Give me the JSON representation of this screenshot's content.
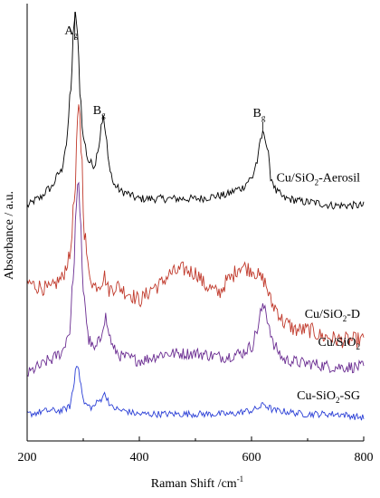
{
  "chart_data": {
    "type": "line",
    "xlabel": "Raman Shift /cm",
    "xlabel_sup": "-1",
    "ylabel": "Absorbance / a.u.",
    "xlim": [
      200,
      800
    ],
    "xticks": [
      "200",
      "400",
      "600",
      "800"
    ],
    "y_ticks_shown": false,
    "grid": false,
    "peak_labels": [
      {
        "main": "A",
        "sub": "g",
        "x": 285
      },
      {
        "main": "B",
        "sub": "g",
        "x": 335
      },
      {
        "main": "B",
        "sub": "g",
        "x": 620
      }
    ],
    "series": [
      {
        "name_parts": [
          {
            "t": "Cu/SiO"
          },
          {
            "t": "2",
            "sub": true
          },
          {
            "t": "-Aerosil"
          }
        ],
        "color": "#000000",
        "offset": 0.7,
        "noise": 0.006,
        "x": [
          200,
          220,
          240,
          260,
          270,
          278,
          283,
          286,
          290,
          295,
          300,
          310,
          320,
          328,
          333,
          336,
          340,
          346,
          355,
          370,
          400,
          450,
          500,
          550,
          580,
          600,
          610,
          617,
          622,
          628,
          635,
          645,
          660,
          700,
          750,
          800
        ],
        "y": [
          0.0,
          0.02,
          0.05,
          0.1,
          0.18,
          0.35,
          0.52,
          0.58,
          0.5,
          0.32,
          0.2,
          0.13,
          0.12,
          0.18,
          0.25,
          0.26,
          0.21,
          0.12,
          0.06,
          0.04,
          0.02,
          0.02,
          0.02,
          0.03,
          0.05,
          0.08,
          0.13,
          0.2,
          0.22,
          0.17,
          0.08,
          0.04,
          0.02,
          0.01,
          0.0,
          0.0
        ]
      },
      {
        "name_parts": [
          {
            "t": "Cu/SiO"
          },
          {
            "t": "2",
            "sub": true
          },
          {
            "t": "-D"
          }
        ],
        "color": "#c0392b",
        "offset": 0.4,
        "noise": 0.012,
        "x": [
          200,
          220,
          240,
          260,
          275,
          285,
          290,
          293,
          297,
          302,
          310,
          320,
          330,
          338,
          345,
          360,
          380,
          400,
          430,
          460,
          480,
          500,
          520,
          540,
          560,
          580,
          600,
          620,
          640,
          660,
          680,
          700,
          730,
          760,
          800
        ],
        "y": [
          0.07,
          0.06,
          0.05,
          0.08,
          0.14,
          0.32,
          0.55,
          0.6,
          0.45,
          0.22,
          0.1,
          0.06,
          0.07,
          0.09,
          0.05,
          0.06,
          0.04,
          0.02,
          0.06,
          0.1,
          0.11,
          0.1,
          0.06,
          0.04,
          0.08,
          0.12,
          0.11,
          0.08,
          0.0,
          -0.05,
          -0.07,
          -0.07,
          -0.09,
          -0.1,
          -0.1
        ]
      },
      {
        "name_parts": [
          {
            "t": "Cu/SiO"
          },
          {
            "t": "2",
            "sub": true
          }
        ],
        "color": "#6a2c91",
        "offset": 0.2,
        "noise": 0.009,
        "x": [
          200,
          220,
          240,
          260,
          275,
          283,
          288,
          291,
          295,
          300,
          310,
          320,
          330,
          336,
          340,
          345,
          355,
          370,
          400,
          450,
          500,
          550,
          580,
          600,
          610,
          618,
          624,
          630,
          640,
          660,
          700,
          750,
          800
        ],
        "y": [
          0.0,
          0.02,
          0.04,
          0.06,
          0.12,
          0.3,
          0.52,
          0.57,
          0.45,
          0.25,
          0.1,
          0.07,
          0.1,
          0.15,
          0.17,
          0.12,
          0.07,
          0.05,
          0.04,
          0.06,
          0.06,
          0.05,
          0.06,
          0.08,
          0.13,
          0.19,
          0.2,
          0.15,
          0.08,
          0.04,
          0.03,
          0.02,
          0.02
        ]
      },
      {
        "name_parts": [
          {
            "t": "Cu-SiO"
          },
          {
            "t": "2",
            "sub": true
          },
          {
            "t": "-SG"
          }
        ],
        "color": "#2b3fd6",
        "offset": 0.08,
        "noise": 0.005,
        "x": [
          200,
          240,
          260,
          275,
          282,
          287,
          291,
          296,
          302,
          315,
          330,
          336,
          342,
          350,
          370,
          400,
          450,
          500,
          560,
          600,
          615,
          622,
          630,
          640,
          700,
          750,
          800
        ],
        "y": [
          0.0,
          0.01,
          0.01,
          0.02,
          0.07,
          0.14,
          0.15,
          0.08,
          0.03,
          0.02,
          0.04,
          0.06,
          0.05,
          0.02,
          0.01,
          0.0,
          0.0,
          0.0,
          0.0,
          0.01,
          0.02,
          0.03,
          0.02,
          0.01,
          0.0,
          0.0,
          -0.01
        ]
      }
    ]
  }
}
